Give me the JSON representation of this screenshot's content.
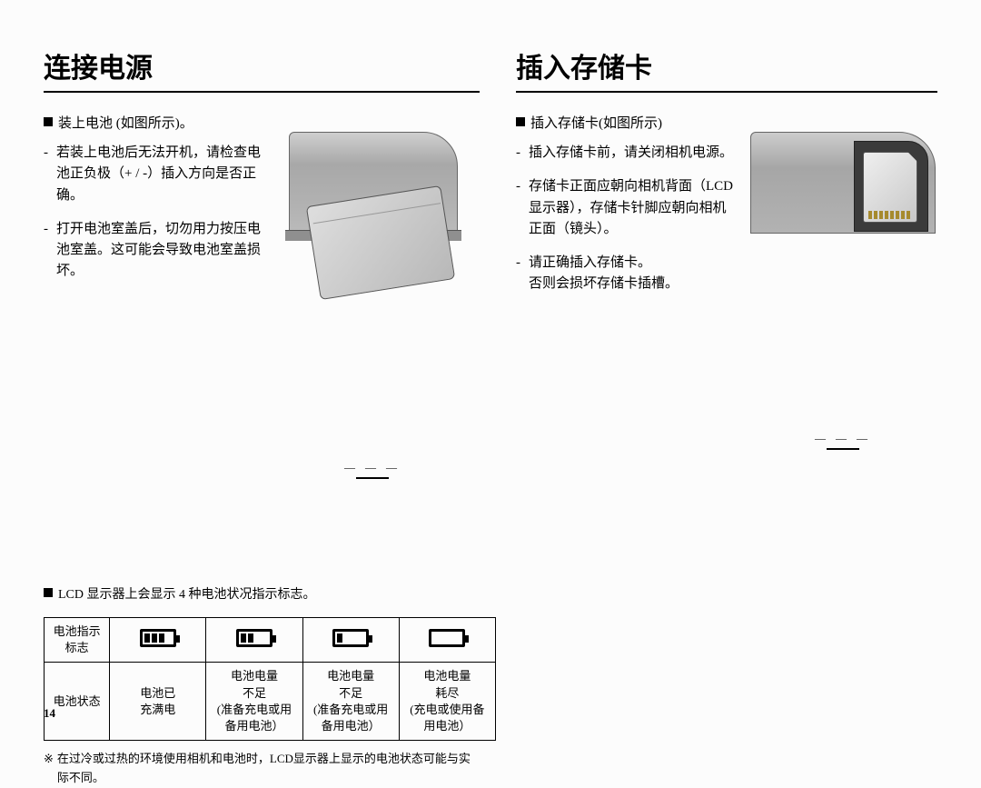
{
  "left": {
    "heading": "连接电源",
    "bullet": "装上电池 (如图所示)。",
    "subs": [
      "若装上电池后无法开机，请检查电池正负极（+ / -）插入方向是否正确。",
      "打开电池室盖后，切勿用力按压电池室盖。这可能会导致电池室盖损坏。"
    ],
    "indicator_note": "LCD 显示器上会显示 4 种电池状况指示标志。",
    "table": {
      "row1_label": "电池指示标志",
      "row2_label": "电池状态",
      "cells": [
        "电池已\n充满电",
        "电池电量\n不足\n(准备充电或用\n备用电池）",
        "电池电量\n不足\n(准备充电或用\n备用电池）",
        "电池电量\n耗尽\n(充电或使用备\n用电池）"
      ]
    },
    "footnote_mark": "※",
    "footnote": "在过冷或过热的环境使用相机和电池时，LCD显示器上显示的电池状态可能与实际不同。"
  },
  "right": {
    "heading": "插入存储卡",
    "bullet": "插入存储卡(如图所示)",
    "subs": [
      "插入存储卡前，请关闭相机电源。",
      "存储卡正面应朝向相机背面（LCD 显示器），存储卡针脚应朝向相机正面（镜头）。",
      "请正确插入存储卡。\n否则会损坏存储卡插槽。"
    ]
  },
  "page_number": "14"
}
